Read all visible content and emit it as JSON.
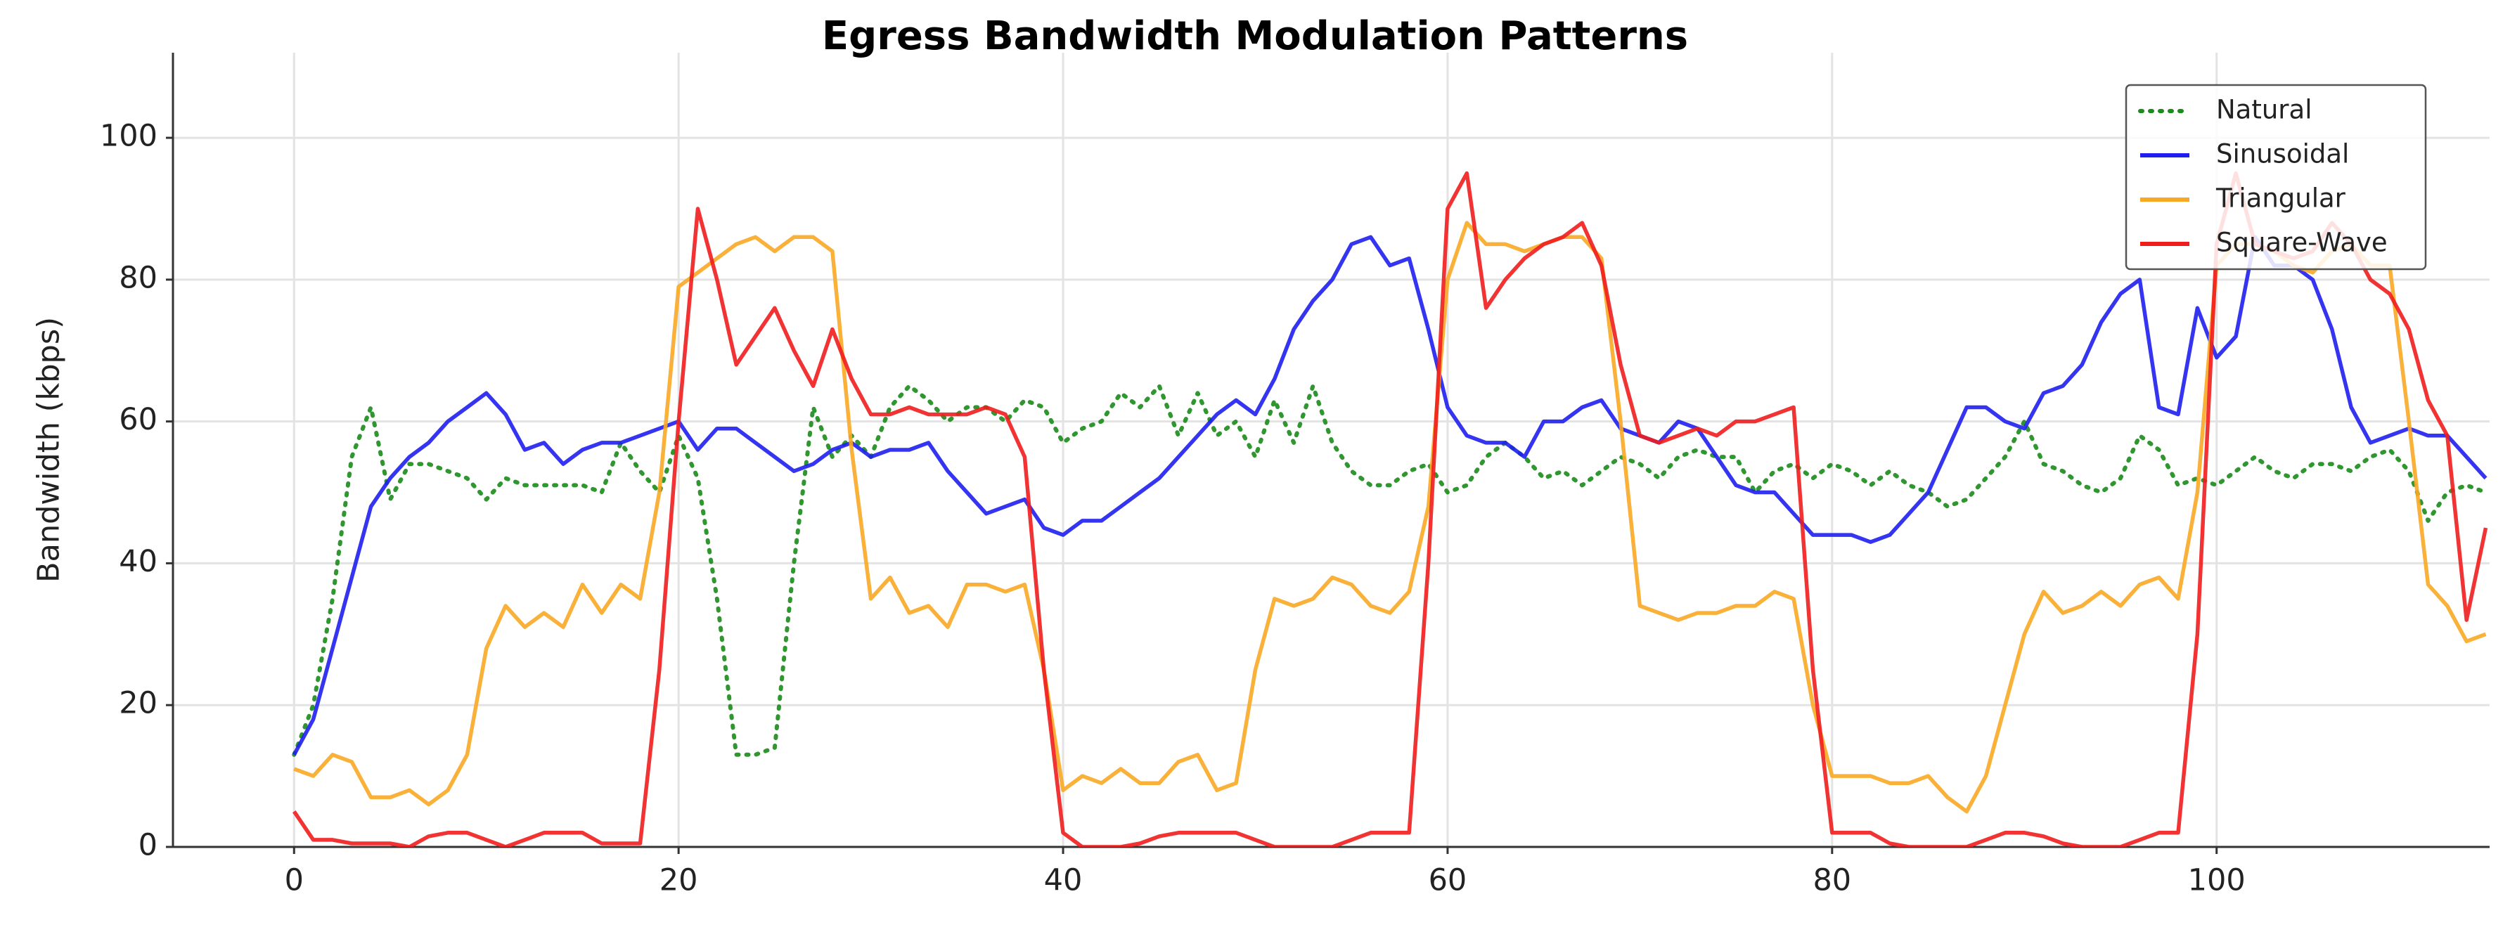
{
  "chart_data": {
    "type": "line",
    "title": "Egress Bandwidth Modulation Patterns",
    "y_label": "Bandwidth (kbps)",
    "x": [
      0,
      1,
      2,
      3,
      4,
      5,
      6,
      7,
      8,
      9,
      10,
      11,
      12,
      13,
      14,
      15,
      16,
      17,
      18,
      19,
      20,
      21,
      22,
      23,
      24,
      25,
      26,
      27,
      28,
      29,
      30,
      31,
      32,
      33,
      34,
      35,
      36,
      37,
      38,
      39,
      40,
      41,
      42,
      43,
      44,
      45,
      46,
      47,
      48,
      49,
      50,
      51,
      52,
      53,
      54,
      55,
      56,
      57,
      58,
      59,
      60,
      61,
      62,
      63,
      64,
      65,
      66,
      67,
      68,
      69,
      70,
      71,
      72,
      73,
      74,
      75,
      76,
      77,
      78,
      79,
      80,
      81,
      82,
      83,
      84,
      85,
      86,
      87,
      88,
      89,
      90,
      91,
      92,
      93,
      94,
      95,
      96,
      97,
      98,
      99,
      100,
      101,
      102,
      103,
      104,
      105,
      106,
      107,
      108,
      109,
      110,
      111,
      112,
      113,
      114
    ],
    "series": [
      {
        "name": "Natural",
        "color": "#1a8c1a",
        "linestyle": "dotted",
        "values": [
          13,
          20,
          35,
          55,
          62,
          49,
          54,
          54,
          53,
          52,
          49,
          52,
          51,
          51,
          51,
          51,
          50,
          57,
          53,
          50,
          58,
          52,
          35,
          13,
          13,
          14,
          40,
          62,
          55,
          58,
          55,
          62,
          65,
          63,
          60,
          62,
          62,
          60,
          63,
          62,
          57,
          59,
          60,
          64,
          62,
          65,
          58,
          64,
          58,
          60,
          55,
          63,
          57,
          65,
          57,
          53,
          51,
          51,
          53,
          54,
          50,
          51,
          55,
          57,
          55,
          52,
          53,
          51,
          53,
          55,
          54,
          52,
          55,
          56,
          55,
          55,
          50,
          53,
          54,
          52,
          54,
          53,
          51,
          53,
          51,
          50,
          48,
          49,
          52,
          55,
          60,
          54,
          53,
          51,
          50,
          52,
          58,
          56,
          51,
          52,
          51,
          53,
          55,
          53,
          52,
          54,
          54,
          53,
          55,
          56,
          53,
          46,
          50,
          51,
          50
        ]
      },
      {
        "name": "Sinusoidal",
        "color": "#1f1fef",
        "linestyle": "solid",
        "values": [
          13,
          18,
          28,
          38,
          48,
          52,
          55,
          57,
          60,
          62,
          64,
          61,
          56,
          57,
          54,
          56,
          57,
          57,
          58,
          59,
          60,
          56,
          59,
          59,
          57,
          55,
          53,
          54,
          56,
          57,
          55,
          56,
          56,
          57,
          53,
          50,
          47,
          48,
          49,
          45,
          44,
          46,
          46,
          48,
          50,
          52,
          55,
          58,
          61,
          63,
          61,
          66,
          73,
          77,
          80,
          85,
          86,
          82,
          83,
          73,
          62,
          58,
          57,
          57,
          55,
          60,
          60,
          62,
          63,
          59,
          58,
          57,
          60,
          59,
          55,
          51,
          50,
          50,
          47,
          44,
          44,
          44,
          43,
          44,
          47,
          50,
          56,
          62,
          62,
          60,
          59,
          64,
          65,
          68,
          74,
          78,
          80,
          62,
          61,
          76,
          69,
          72,
          86,
          82,
          82,
          80,
          73,
          62,
          57,
          58,
          59,
          58,
          58,
          55,
          52
        ]
      },
      {
        "name": "Triangular",
        "color": "#f9a825",
        "linestyle": "solid",
        "values": [
          11,
          10,
          13,
          12,
          7,
          7,
          8,
          6,
          8,
          13,
          28,
          34,
          31,
          33,
          31,
          37,
          33,
          37,
          35,
          50,
          79,
          81,
          83,
          85,
          86,
          84,
          86,
          86,
          84,
          56,
          35,
          38,
          33,
          34,
          31,
          37,
          37,
          36,
          37,
          25,
          8,
          10,
          9,
          11,
          9,
          9,
          12,
          13,
          8,
          9,
          25,
          35,
          34,
          35,
          38,
          37,
          34,
          33,
          36,
          48,
          80,
          88,
          85,
          85,
          84,
          85,
          86,
          86,
          83,
          60,
          34,
          33,
          32,
          33,
          33,
          34,
          34,
          36,
          35,
          20,
          10,
          10,
          10,
          9,
          9,
          10,
          7,
          5,
          10,
          20,
          30,
          36,
          33,
          34,
          36,
          34,
          37,
          38,
          35,
          50,
          82,
          85,
          85,
          84,
          82,
          81,
          84,
          85,
          82,
          82,
          60,
          37,
          34,
          29,
          30
        ]
      },
      {
        "name": "Square-Wave",
        "color": "#f01d1d",
        "linestyle": "solid",
        "values": [
          5,
          1,
          1,
          0.5,
          0.5,
          0.5,
          0,
          1.5,
          2,
          2,
          1,
          0,
          1,
          2,
          2,
          2,
          0.5,
          0.5,
          0.5,
          25,
          60,
          90,
          80,
          68,
          72,
          76,
          70,
          65,
          73,
          66,
          61,
          61,
          62,
          61,
          61,
          61,
          62,
          61,
          55,
          25,
          2,
          0,
          0,
          0,
          0.5,
          1.5,
          2,
          2,
          2,
          2,
          1,
          0,
          0,
          0,
          0,
          1,
          2,
          2,
          2,
          40,
          90,
          95,
          76,
          80,
          83,
          85,
          86,
          88,
          82,
          68,
          58,
          57,
          58,
          59,
          58,
          60,
          60,
          61,
          62,
          25,
          2,
          2,
          2,
          0.5,
          0,
          0,
          0,
          0,
          1,
          2,
          2,
          1.5,
          0.5,
          0,
          0,
          0,
          1,
          2,
          2,
          30,
          85,
          95,
          85,
          84,
          83,
          84,
          88,
          85,
          80,
          78,
          73,
          63,
          58,
          32,
          45
        ]
      }
    ],
    "xlim": [
      -6.3,
      114.2
    ],
    "ylim": [
      0,
      112
    ],
    "xticks": [
      0,
      20,
      40,
      60,
      80,
      100
    ],
    "yticks": [
      0,
      20,
      40,
      60,
      80,
      100
    ],
    "grid": true,
    "legend": "upper right"
  }
}
